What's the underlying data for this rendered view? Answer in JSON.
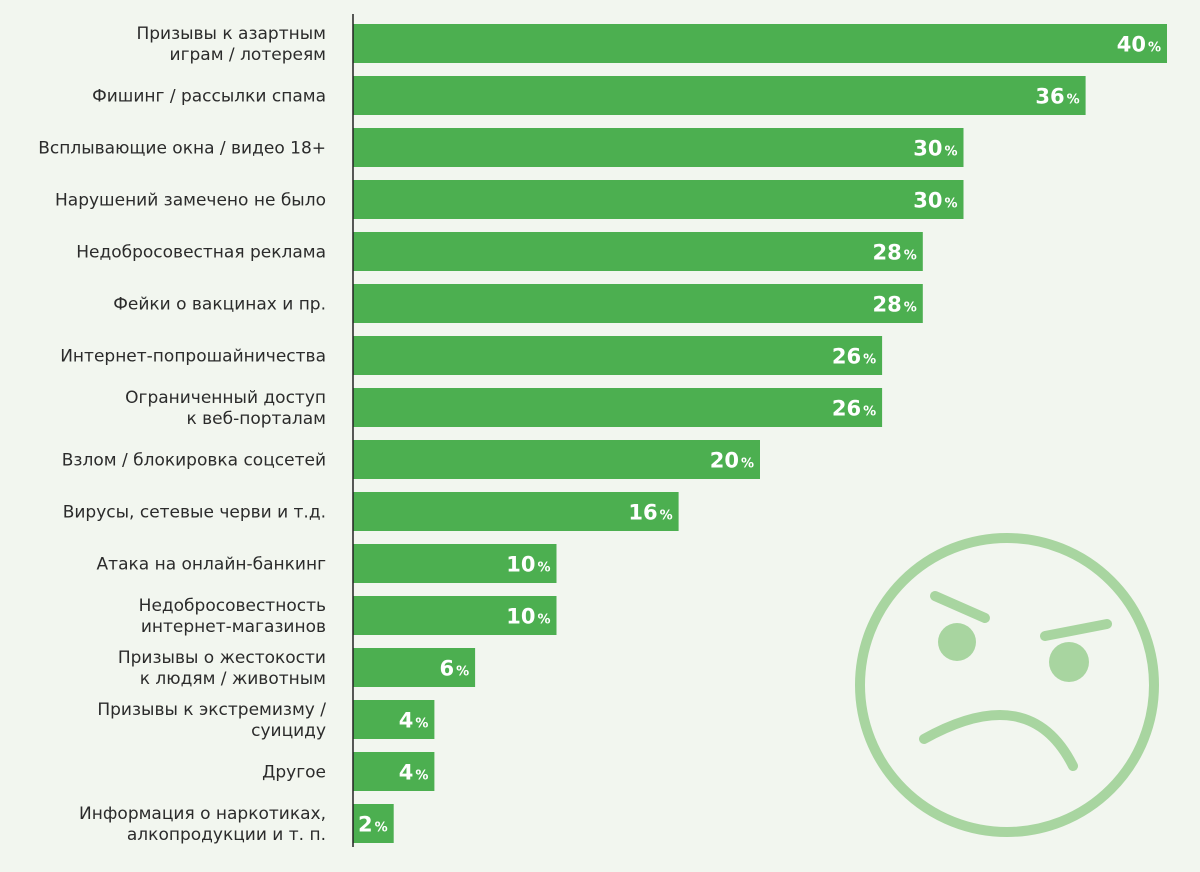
{
  "chart_data": {
    "type": "bar",
    "orientation": "horizontal",
    "title": "",
    "xlabel": "",
    "ylabel": "",
    "value_suffix": "%",
    "xlim": [
      0,
      40
    ],
    "grid": false,
    "legend": "none",
    "categories": [
      [
        "Призывы к азартным",
        "играм / лотереям"
      ],
      [
        "Фишинг / рассылки спама"
      ],
      [
        "Всплывающие окна / видео 18+"
      ],
      [
        "Нарушений замечено не было"
      ],
      [
        "Недобросовестная реклама"
      ],
      [
        "Фейки о вакцинах и пр."
      ],
      [
        "Интернет-попрошайничества"
      ],
      [
        "Ограниченный доступ",
        "к веб-порталам"
      ],
      [
        "Взлом / блокировка соцсетей"
      ],
      [
        "Вирусы, сетевые черви и т.д."
      ],
      [
        "Атака на онлайн-банкинг"
      ],
      [
        "Недобросовестность",
        "интернет-магазинов"
      ],
      [
        "Призывы о жестокости",
        "к людям / животным"
      ],
      [
        "Призывы к экстремизму /",
        "суициду"
      ],
      [
        "Другое"
      ],
      [
        "Информация о наркотиках,",
        "алкопродукции и т. п."
      ]
    ],
    "values": [
      40,
      36,
      30,
      30,
      28,
      28,
      26,
      26,
      20,
      16,
      10,
      10,
      6,
      4,
      4,
      2
    ]
  },
  "colors": {
    "bar": "#4caf50",
    "axis": "#222222",
    "background": "#f2f6ef",
    "face": "#a8d5a0"
  },
  "decoration": {
    "icon": "angry-face-icon"
  }
}
